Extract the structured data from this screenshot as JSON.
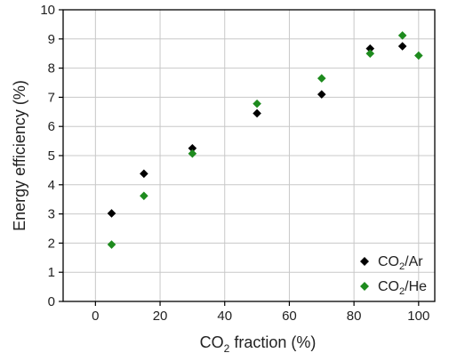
{
  "chart_data": {
    "type": "scatter",
    "xlabel": {
      "pre": "CO",
      "sub": "2",
      "post": " fraction (%)"
    },
    "ylabel": "Energy efficiency (%)",
    "xlim": [
      -10,
      105
    ],
    "ylim": [
      0,
      10
    ],
    "xticks": [
      0,
      20,
      40,
      60,
      80,
      100
    ],
    "xtick_labels": [
      "0",
      "20",
      "40",
      "60",
      "80",
      "100"
    ],
    "yticks": [
      0,
      1,
      2,
      3,
      4,
      5,
      6,
      7,
      8,
      9,
      10
    ],
    "ytick_labels": [
      "0",
      "1",
      "2",
      "3",
      "4",
      "5",
      "6",
      "7",
      "8",
      "9",
      "10"
    ],
    "grid": true,
    "legend_position": "bottom-right",
    "series": [
      {
        "name": "CO2/Ar",
        "label": {
          "pre": "CO",
          "sub": "2",
          "post": "/Ar"
        },
        "color": "#000000",
        "marker": "diamond",
        "x": [
          5,
          15,
          30,
          50,
          70,
          85,
          95
        ],
        "y": [
          3.02,
          4.38,
          5.25,
          6.45,
          7.1,
          8.67,
          8.75
        ]
      },
      {
        "name": "CO2/He",
        "label": {
          "pre": "CO",
          "sub": "2",
          "post": "/He"
        },
        "color": "#1e8b1e",
        "marker": "diamond",
        "x": [
          5,
          15,
          30,
          50,
          70,
          85,
          95,
          100
        ],
        "y": [
          1.95,
          3.62,
          5.07,
          6.78,
          7.65,
          8.5,
          9.12,
          8.43
        ]
      }
    ]
  }
}
